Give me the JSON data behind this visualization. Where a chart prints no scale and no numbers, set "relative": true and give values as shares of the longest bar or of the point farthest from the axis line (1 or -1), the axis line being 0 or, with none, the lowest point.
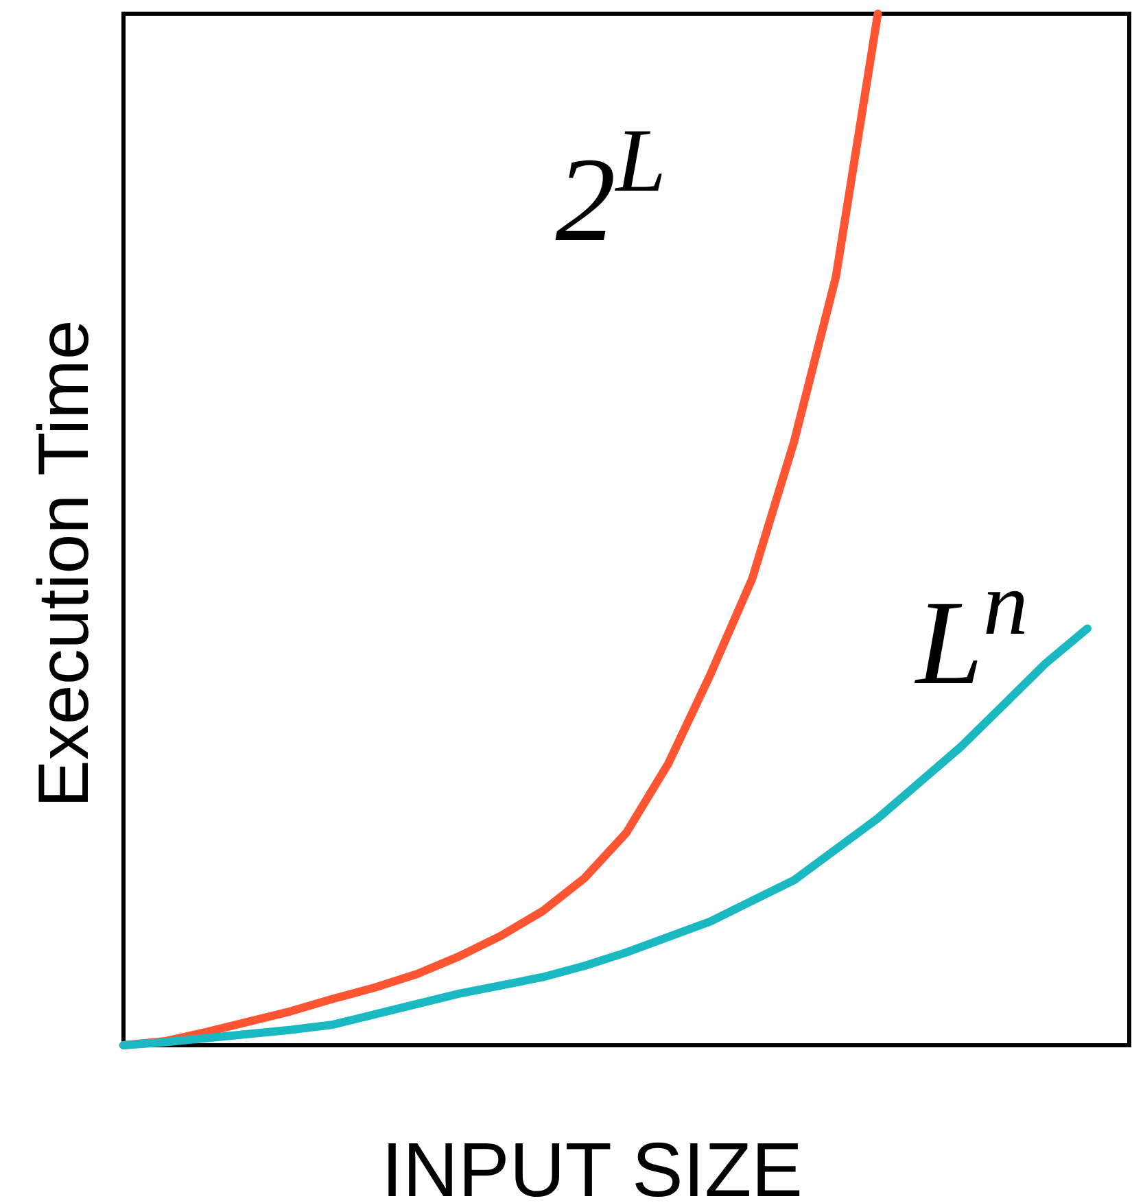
{
  "chart_data": {
    "type": "line",
    "relative": true,
    "xlabel": "INPUT SIZE",
    "ylabel": "Execution Time",
    "tick_labels": false,
    "line_style": "solid",
    "marker": "none",
    "categories": [
      null,
      null,
      null,
      null,
      null,
      null,
      null,
      null,
      null,
      null,
      null,
      null,
      null,
      null,
      null,
      null,
      null,
      null,
      null,
      null,
      null,
      null,
      null,
      null,
      null
    ],
    "series": [
      {
        "name": "2$^{L}$",
        "color": "#ff5533",
        "values": [
          0,
          0.004,
          0.013,
          0.023,
          0.033,
          0.045,
          0.056,
          0.069,
          0.086,
          0.106,
          0.13,
          0.162,
          0.206,
          0.273,
          0.359,
          0.452,
          0.585,
          0.745,
          1,
          null,
          null,
          null,
          null,
          null,
          null
        ]
      },
      {
        "name": "L$^{n}$",
        "color": "#1ab8c0",
        "values": [
          0,
          0.003,
          0.007,
          0.011,
          0.015,
          0.02,
          0.03,
          0.04,
          0.05,
          0.058,
          0.066,
          0.077,
          0.09,
          0.105,
          0.12,
          0.14,
          0.16,
          0.19,
          0.22,
          0.255,
          0.29,
          0.33,
          0.37,
          0.404,
          null
        ]
      }
    ]
  }
}
